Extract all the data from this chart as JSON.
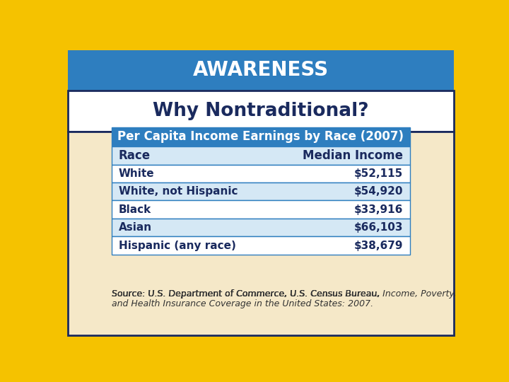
{
  "title": "AWARENESS",
  "subtitle": "Why Nontraditional?",
  "table_title": "Per Capita Income Earnings by Race (2007)",
  "col_headers": [
    "Race",
    "Median Income"
  ],
  "rows": [
    [
      "White",
      "$52,115"
    ],
    [
      "White, not Hispanic",
      "$54,920"
    ],
    [
      "Black",
      "$33,916"
    ],
    [
      "Asian",
      "$66,103"
    ],
    [
      "Hispanic (any race)",
      "$38,679"
    ]
  ],
  "source_line1_plain": "Source: U.S. Department of Commerce, U.S. Census Bureau, ",
  "source_line1_italic": "Income, Poverty,",
  "source_line2_italic": "and Health Insurance Coverage in the United States: 2007.",
  "colors": {
    "outer_border": "#F5C200",
    "header_bg": "#2E7EBF",
    "header_text": "#FFFFFF",
    "subtitle_bg": "#FFFFFF",
    "subtitle_text": "#1A2A5E",
    "body_bg": "#F5E8C8",
    "table_header_bg": "#2E7EBF",
    "table_header_text": "#FFFFFF",
    "col_header_bg": "#D5E8F5",
    "col_header_text": "#1A2A5E",
    "row_white_bg": "#FFFFFF",
    "row_blue_bg": "#D5E8F5",
    "row_text": "#1A2A5E",
    "table_border": "#2E7EBF",
    "inner_border": "#1A2A5E",
    "source_text": "#333333"
  },
  "title_fontsize": 20,
  "subtitle_fontsize": 19,
  "table_title_fontsize": 12,
  "col_header_fontsize": 12,
  "row_fontsize": 11,
  "source_fontsize": 9
}
